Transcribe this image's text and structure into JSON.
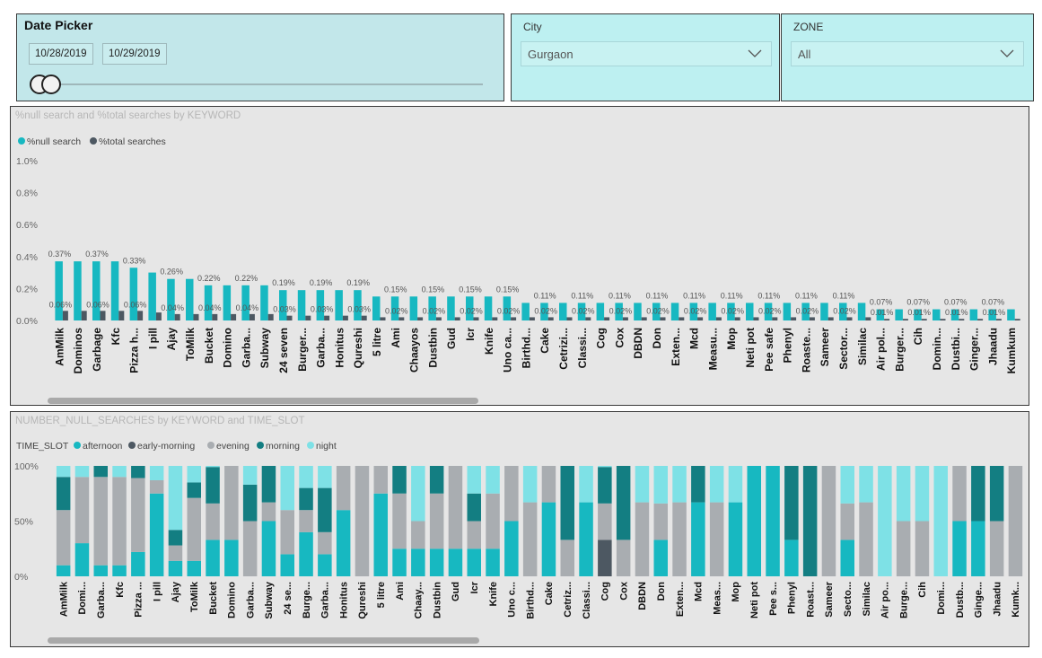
{
  "date_picker": {
    "title": "Date Picker",
    "start": "10/28/2019",
    "end": "10/29/2019",
    "range_fraction": [
      0.0,
      0.02
    ]
  },
  "city": {
    "label": "City",
    "value": "Gurgaon"
  },
  "zone": {
    "label": "ZONE",
    "value": "All"
  },
  "colors": {
    "afternoon": "#17b8c1",
    "early_morning": "#4d5862",
    "evening": "#a9adb1",
    "morning": "#137e82",
    "night": "#7ee1e6"
  },
  "chart_data": [
    {
      "type": "bar",
      "title": "%null search and %total searches by KEYWORD",
      "legend_position": "top-left",
      "y_ticks": [
        "1.0%",
        "0.8%",
        "0.6%",
        "0.4%",
        "0.2%",
        "0.0%"
      ],
      "ylim": [
        0,
        1.0
      ],
      "categories": [
        "AmMilk",
        "Dominos",
        "Garbage",
        "Kfc",
        "Pizza h...",
        "I pill",
        "Ajay",
        "ToMilk",
        "Bucket",
        "Domino",
        "Garba...",
        "Subway",
        "24 seven",
        "Burger...",
        "Garba...",
        "Honitus",
        "Qureshi",
        "5 litre",
        "Ami",
        "Chaayos",
        "Dustbin",
        "Gud",
        "Icr",
        "Knife",
        "Uno ca...",
        "Birthd...",
        "Cake",
        "Cetrizi...",
        "Classi...",
        "Cog",
        "Cox",
        "DBDN",
        "Don",
        "Exten...",
        "Mcd",
        "Measu...",
        "Mop",
        "Neti pot",
        "Pee safe",
        "Phenyl",
        "Roaste...",
        "Sameer",
        "Sector...",
        "Similac",
        "Air pol...",
        "Burger...",
        "Cih",
        "Domin...",
        "Dustbi...",
        "Ginger...",
        "Jhaadu",
        "Kumkum"
      ],
      "series": [
        {
          "name": "%null search",
          "values": [
            0.37,
            0.37,
            0.37,
            0.37,
            0.33,
            0.3,
            0.26,
            0.26,
            0.22,
            0.22,
            0.22,
            0.22,
            0.19,
            0.19,
            0.19,
            0.19,
            0.19,
            0.15,
            0.15,
            0.15,
            0.15,
            0.15,
            0.15,
            0.15,
            0.15,
            0.11,
            0.11,
            0.11,
            0.11,
            0.11,
            0.11,
            0.11,
            0.11,
            0.11,
            0.11,
            0.11,
            0.11,
            0.11,
            0.11,
            0.11,
            0.11,
            0.11,
            0.11,
            0.11,
            0.07,
            0.07,
            0.07,
            0.07,
            0.07,
            0.07,
            0.07,
            0.07
          ],
          "labels": [
            "0.37%",
            "",
            "0.37%",
            "",
            "0.33%",
            "",
            "0.26%",
            "",
            "0.22%",
            "",
            "0.22%",
            "",
            "0.19%",
            "",
            "0.19%",
            "",
            "0.19%",
            "",
            "0.15%",
            "",
            "0.15%",
            "",
            "0.15%",
            "",
            "0.15%",
            "",
            "0.11%",
            "",
            "0.11%",
            "",
            "0.11%",
            "",
            "0.11%",
            "",
            "0.11%",
            "",
            "0.11%",
            "",
            "0.11%",
            "",
            "0.11%",
            "",
            "0.11%",
            "",
            "0.07%",
            "",
            "0.07%",
            "",
            "0.07%",
            "",
            "0.07%",
            ""
          ]
        },
        {
          "name": "%total searches",
          "values": [
            0.06,
            0.06,
            0.06,
            0.06,
            0.06,
            0.05,
            0.04,
            0.04,
            0.04,
            0.04,
            0.04,
            0.04,
            0.03,
            0.03,
            0.03,
            0.03,
            0.03,
            0.02,
            0.02,
            0.02,
            0.02,
            0.02,
            0.02,
            0.02,
            0.02,
            0.02,
            0.02,
            0.02,
            0.02,
            0.02,
            0.02,
            0.02,
            0.02,
            0.02,
            0.02,
            0.02,
            0.02,
            0.02,
            0.02,
            0.02,
            0.02,
            0.02,
            0.02,
            0.02,
            0.01,
            0.01,
            0.01,
            0.01,
            0.01,
            0.01,
            0.01,
            0.01
          ],
          "labels": [
            "0.06%",
            "",
            "0.06%",
            "",
            "0.06%",
            "",
            "0.04%",
            "",
            "0.04%",
            "",
            "0.04%",
            "",
            "0.03%",
            "",
            "0.03%",
            "",
            "0.03%",
            "",
            "0.02%",
            "",
            "0.02%",
            "",
            "0.02%",
            "",
            "0.02%",
            "",
            "0.02%",
            "",
            "0.02%",
            "",
            "0.02%",
            "",
            "0.02%",
            "",
            "0.02%",
            "",
            "0.02%",
            "",
            "0.02%",
            "",
            "0.02%",
            "",
            "0.02%",
            "",
            "0.01%",
            "",
            "0.01%",
            "",
            "0.01%",
            "",
            "0.01%",
            ""
          ]
        }
      ]
    },
    {
      "type": "bar",
      "stacked_percent": true,
      "title": "NUMBER_NULL_SEARCHES by KEYWORD and TIME_SLOT",
      "legend_title": "TIME_SLOT",
      "legend_position": "top-left",
      "y_ticks": [
        "100%",
        "50%",
        "0%"
      ],
      "ylim": [
        0,
        100
      ],
      "categories": [
        "AmMilk",
        "Domi...",
        "Garba...",
        "Kfc",
        "Pizza ...",
        "I pill",
        "Ajay",
        "ToMilk",
        "Bucket",
        "Domino",
        "Garba...",
        "Subway",
        "24 se...",
        "Burge...",
        "Garba...",
        "Honitus",
        "Qureshi",
        "5 litre",
        "Ami",
        "Chaay...",
        "Dustbin",
        "Gud",
        "Icr",
        "Knife",
        "Uno c...",
        "Birthd...",
        "Cake",
        "Cetriz...",
        "Classi...",
        "Cog",
        "Cox",
        "DBDN",
        "Don",
        "Exten...",
        "Mcd",
        "Meas...",
        "Mop",
        "Neti pot",
        "Pee s...",
        "Phenyl",
        "Roast...",
        "Sameer",
        "Secto...",
        "Similac",
        "Air po...",
        "Burge...",
        "Cih",
        "Domi...",
        "Dustb...",
        "Ginge...",
        "Jhaadu",
        "Kumk..."
      ],
      "series": [
        {
          "name": "afternoon",
          "values": [
            10,
            30,
            10,
            10,
            22,
            75,
            14,
            14,
            33,
            33,
            0,
            50,
            20,
            40,
            20,
            60,
            0,
            75,
            25,
            25,
            25,
            25,
            25,
            25,
            50,
            0,
            67,
            0,
            67,
            0,
            0,
            0,
            33,
            0,
            67,
            0,
            67,
            100,
            100,
            33,
            0,
            0,
            33,
            0,
            0,
            0,
            0,
            0,
            50,
            50,
            0,
            0
          ]
        },
        {
          "name": "early-morning",
          "values": [
            0,
            0,
            0,
            0,
            0,
            0,
            0,
            0,
            0,
            0,
            0,
            0,
            0,
            0,
            0,
            0,
            0,
            0,
            0,
            0,
            0,
            0,
            0,
            0,
            0,
            0,
            0,
            0,
            0,
            33,
            0,
            0,
            0,
            0,
            0,
            0,
            0,
            0,
            0,
            0,
            0,
            0,
            0,
            0,
            0,
            0,
            0,
            0,
            0,
            0,
            0,
            0
          ]
        },
        {
          "name": "evening",
          "values": [
            50,
            60,
            80,
            80,
            67,
            12,
            14,
            57,
            33,
            67,
            50,
            17,
            40,
            20,
            20,
            40,
            100,
            25,
            50,
            25,
            50,
            75,
            25,
            50,
            50,
            67,
            33,
            33,
            0,
            33,
            33,
            67,
            33,
            67,
            0,
            67,
            0,
            0,
            0,
            0,
            0,
            100,
            33,
            67,
            0,
            50,
            50,
            0,
            50,
            0,
            50,
            100
          ]
        },
        {
          "name": "morning",
          "values": [
            30,
            0,
            10,
            0,
            11,
            0,
            14,
            14,
            33,
            0,
            33,
            33,
            0,
            20,
            40,
            0,
            0,
            0,
            25,
            0,
            25,
            0,
            25,
            0,
            0,
            0,
            0,
            67,
            0,
            33,
            67,
            0,
            0,
            0,
            33,
            0,
            0,
            0,
            0,
            67,
            100,
            0,
            0,
            0,
            0,
            0,
            0,
            0,
            0,
            50,
            50,
            0
          ]
        },
        {
          "name": "night",
          "values": [
            10,
            10,
            0,
            10,
            0,
            13,
            58,
            15,
            1,
            0,
            17,
            0,
            40,
            20,
            20,
            0,
            0,
            0,
            0,
            50,
            0,
            0,
            25,
            25,
            0,
            33,
            0,
            0,
            33,
            1,
            0,
            33,
            34,
            33,
            0,
            33,
            33,
            0,
            0,
            0,
            0,
            0,
            34,
            33,
            100,
            50,
            50,
            100,
            0,
            0,
            0,
            0
          ]
        }
      ]
    }
  ]
}
